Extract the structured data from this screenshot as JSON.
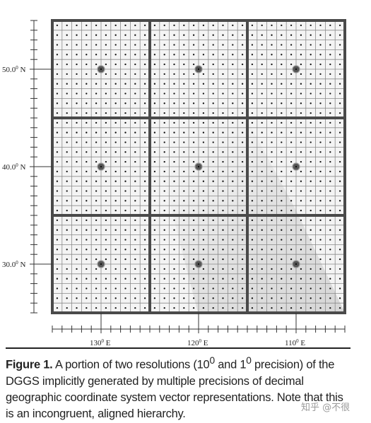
{
  "figure": {
    "x_axis_labels": [
      {
        "value": 130,
        "text": "130",
        "sup": "0",
        "unit": " E"
      },
      {
        "value": 120,
        "text": "120",
        "sup": "0",
        "unit": " E"
      },
      {
        "value": 110,
        "text": "110",
        "sup": "0",
        "unit": " E"
      }
    ],
    "y_axis_labels": [
      {
        "value": 50,
        "text": "50.0",
        "sup": "0",
        "unit": " N"
      },
      {
        "value": 40,
        "text": "40.0",
        "sup": "0",
        "unit": " N"
      },
      {
        "value": 30,
        "text": "30.0",
        "sup": "0",
        "unit": " N"
      }
    ],
    "coarse_resolution_deg": 10,
    "fine_resolution_deg": 1,
    "lon_range": [
      135,
      105
    ],
    "lat_range": [
      55,
      25
    ]
  },
  "caption": {
    "label": "Figure 1.",
    "text": " A portion of two resolutions (10",
    "sup1": "0",
    "text2": " and 1",
    "sup2": "0",
    "text3": " precision) of the DGGS implicitly generated by multiple precisions of decimal geographic coordinate system vector representations. Note that this is an incongruent, aligned hierarchy."
  },
  "watermark": "知乎 @不很"
}
